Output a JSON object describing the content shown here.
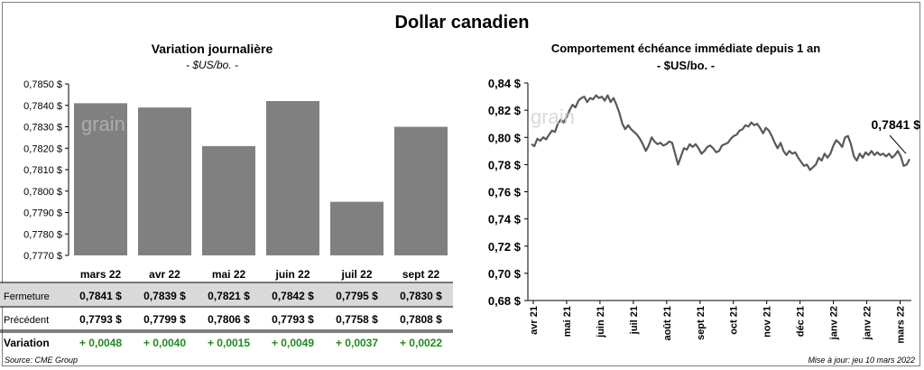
{
  "main_title": "Dollar canadien",
  "source": "Source: CME Group",
  "updated": "Mise à jour: jeu 10 mars 2022",
  "watermark": "grainwatch",
  "left_chart": {
    "title": "Variation  journalière",
    "subtitle": "- $US/bo. -"
  },
  "right_chart": {
    "title": "Comportement échéance immédiate depuis 1 an",
    "subtitle": "- $US/bo. -",
    "last_label": "0,7841 $"
  },
  "table": {
    "rows": [
      {
        "label": "Fermeture",
        "values": [
          "0,7841  $",
          "0,7839  $",
          "0,7821  $",
          "0,7842  $",
          "0,7795  $",
          "0,7830  $"
        ]
      },
      {
        "label": "Précédent",
        "values": [
          "0,7793  $",
          "0,7799  $",
          "0,7806  $",
          "0,7793  $",
          "0,7758  $",
          "0,7808  $"
        ]
      },
      {
        "label": "Variation",
        "values": [
          "+ 0,0048",
          "+ 0,0040",
          "+ 0,0015",
          "+ 0,0049",
          "+ 0,0037",
          "+ 0,0022"
        ]
      }
    ],
    "positive_color": "#1e8c1e"
  },
  "chart_data": [
    {
      "type": "bar",
      "title": "Variation  journalière",
      "subtitle": "- $US/bo. -",
      "categories": [
        "mars 22",
        "avr 22",
        "mai 22",
        "juin 22",
        "juil 22",
        "sept 22"
      ],
      "values": [
        0.7841,
        0.7839,
        0.7821,
        0.7842,
        0.7795,
        0.783
      ],
      "ylim": [
        0.777,
        0.785
      ],
      "yticks": [
        "0,7770 $",
        "0,7780 $",
        "0,7790 $",
        "0,7800 $",
        "0,7810 $",
        "0,7820 $",
        "0,7830 $",
        "0,7840 $",
        "0,7850 $"
      ],
      "color": "#808080",
      "grid": false
    },
    {
      "type": "line",
      "title": "Comportement échéance immédiate depuis 1 an",
      "subtitle": "- $US/bo. -",
      "ylim": [
        0.68,
        0.84
      ],
      "yticks": [
        "0,68 $",
        "0,70 $",
        "0,72 $",
        "0,74 $",
        "0,76 $",
        "0,78 $",
        "0,80 $",
        "0,82 $",
        "0,84 $"
      ],
      "xticks": [
        "avr 21",
        "mai 21",
        "juin 21",
        "juil 21",
        "août 21",
        "sept 21",
        "oct 21",
        "nov 21",
        "déc 21",
        "janv 22",
        "janv 22",
        "mars 22"
      ],
      "color": "#595959",
      "grid": false,
      "values": [
        0.795,
        0.7935,
        0.799,
        0.7975,
        0.8,
        0.7985,
        0.802,
        0.805,
        0.804,
        0.81,
        0.813,
        0.811,
        0.815,
        0.82,
        0.824,
        0.822,
        0.827,
        0.829,
        0.83,
        0.826,
        0.829,
        0.828,
        0.831,
        0.829,
        0.83,
        0.827,
        0.831,
        0.826,
        0.829,
        0.824,
        0.818,
        0.81,
        0.806,
        0.809,
        0.806,
        0.804,
        0.802,
        0.799,
        0.795,
        0.79,
        0.794,
        0.8,
        0.797,
        0.795,
        0.796,
        0.794,
        0.795,
        0.797,
        0.796,
        0.788,
        0.78,
        0.786,
        0.792,
        0.791,
        0.795,
        0.793,
        0.795,
        0.792,
        0.788,
        0.79,
        0.793,
        0.794,
        0.792,
        0.789,
        0.79,
        0.794,
        0.795,
        0.796,
        0.799,
        0.801,
        0.802,
        0.805,
        0.806,
        0.809,
        0.808,
        0.811,
        0.809,
        0.81,
        0.807,
        0.803,
        0.807,
        0.805,
        0.801,
        0.796,
        0.792,
        0.796,
        0.79,
        0.787,
        0.79,
        0.788,
        0.789,
        0.785,
        0.782,
        0.779,
        0.78,
        0.776,
        0.778,
        0.78,
        0.785,
        0.783,
        0.788,
        0.785,
        0.788,
        0.794,
        0.798,
        0.796,
        0.793,
        0.8,
        0.801,
        0.795,
        0.786,
        0.783,
        0.788,
        0.785,
        0.789,
        0.787,
        0.79,
        0.787,
        0.789,
        0.787,
        0.788,
        0.786,
        0.788,
        0.785,
        0.787,
        0.79,
        0.786,
        0.779,
        0.78,
        0.7841
      ],
      "last_value": 0.7841,
      "last_label": "0,7841 $"
    }
  ]
}
